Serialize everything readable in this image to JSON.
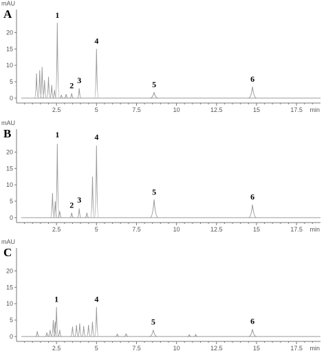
{
  "chart_data": [
    {
      "type": "line",
      "panel": "A",
      "ylabel": "mAU",
      "xlabel": "min",
      "x_ticks": [
        "2.5",
        "5",
        "7.5",
        "10",
        "12.5",
        "15",
        "17.5"
      ],
      "y_ticks": [
        "0",
        "5",
        "10",
        "15",
        "20"
      ],
      "xlim": [
        0,
        19
      ],
      "ylim": [
        -1.5,
        27
      ],
      "peaks": [
        {
          "label": "1",
          "x": 2.55,
          "y": 23.0,
          "label_y": 24.5
        },
        {
          "label": "2",
          "x": 3.45,
          "y": 1.5,
          "label_y": 3.0
        },
        {
          "label": "3",
          "x": 3.92,
          "y": 3.0,
          "label_y": 4.6
        },
        {
          "label": "4",
          "x": 5.0,
          "y": 15.0,
          "label_y": 16.6
        },
        {
          "label": "5",
          "x": 8.6,
          "y": 1.8,
          "label_y": 3.3
        },
        {
          "label": "6",
          "x": 14.75,
          "y": 3.5,
          "label_y": 5.0
        }
      ],
      "minor_peaks": [
        {
          "x": 1.25,
          "y": 7.5
        },
        {
          "x": 1.45,
          "y": 8.5
        },
        {
          "x": 1.6,
          "y": 9.5
        },
        {
          "x": 1.75,
          "y": 5.5
        },
        {
          "x": 2.0,
          "y": 6.5
        },
        {
          "x": 2.2,
          "y": 4.0
        },
        {
          "x": 2.38,
          "y": 2.5
        },
        {
          "x": 2.8,
          "y": 1.0
        },
        {
          "x": 3.1,
          "y": 1.2
        }
      ]
    },
    {
      "type": "line",
      "panel": "B",
      "ylabel": "mAU",
      "xlabel": "min",
      "x_ticks": [
        "2.5",
        "5",
        "7.5",
        "10",
        "12.5",
        "15",
        "17.5"
      ],
      "y_ticks": [
        "0",
        "5",
        "10",
        "15",
        "20"
      ],
      "xlim": [
        0,
        19
      ],
      "ylim": [
        -1.5,
        27
      ],
      "peaks": [
        {
          "label": "1",
          "x": 2.55,
          "y": 22.5,
          "label_y": 24.5
        },
        {
          "label": "2",
          "x": 3.45,
          "y": 1.5,
          "label_y": 3.0
        },
        {
          "label": "3",
          "x": 3.92,
          "y": 2.8,
          "label_y": 4.6
        },
        {
          "label": "4",
          "x": 5.0,
          "y": 22.0,
          "label_y": 23.8
        },
        {
          "label": "5",
          "x": 8.6,
          "y": 5.5,
          "label_y": 7.0
        },
        {
          "label": "6",
          "x": 14.75,
          "y": 4.0,
          "label_y": 5.5
        }
      ],
      "minor_peaks": [
        {
          "x": 2.25,
          "y": 7.5
        },
        {
          "x": 2.42,
          "y": 5.0
        },
        {
          "x": 2.7,
          "y": 2.0
        },
        {
          "x": 4.4,
          "y": 1.5
        },
        {
          "x": 4.75,
          "y": 12.5
        }
      ]
    },
    {
      "type": "line",
      "panel": "C",
      "ylabel": "mAU",
      "xlabel": "min",
      "x_ticks": [
        "2.5",
        "5",
        "7.5",
        "10",
        "12.5",
        "15",
        "17.5"
      ],
      "y_ticks": [
        "0",
        "5",
        "10",
        "15",
        "20"
      ],
      "xlim": [
        0,
        19
      ],
      "ylim": [
        -1.5,
        27
      ],
      "peaks": [
        {
          "label": "1",
          "x": 2.5,
          "y": 9.0,
          "label_y": 10.6
        },
        {
          "label": "4",
          "x": 5.0,
          "y": 9.0,
          "label_y": 10.6
        },
        {
          "label": "5",
          "x": 8.55,
          "y": 2.0,
          "label_y": 3.6
        },
        {
          "label": "6",
          "x": 14.75,
          "y": 2.2,
          "label_y": 3.8
        }
      ],
      "minor_peaks": [
        {
          "x": 1.3,
          "y": 1.6
        },
        {
          "x": 1.9,
          "y": 1.2
        },
        {
          "x": 2.1,
          "y": 2.0
        },
        {
          "x": 2.3,
          "y": 5.0
        },
        {
          "x": 2.42,
          "y": 4.5
        },
        {
          "x": 2.7,
          "y": 2.0
        },
        {
          "x": 3.5,
          "y": 3.0
        },
        {
          "x": 3.75,
          "y": 3.5
        },
        {
          "x": 3.95,
          "y": 4.0
        },
        {
          "x": 4.2,
          "y": 3.2
        },
        {
          "x": 4.5,
          "y": 3.5
        },
        {
          "x": 4.75,
          "y": 4.5
        },
        {
          "x": 6.3,
          "y": 0.8
        },
        {
          "x": 6.85,
          "y": 0.9
        },
        {
          "x": 10.8,
          "y": 0.5
        },
        {
          "x": 11.2,
          "y": 0.6
        }
      ]
    }
  ]
}
